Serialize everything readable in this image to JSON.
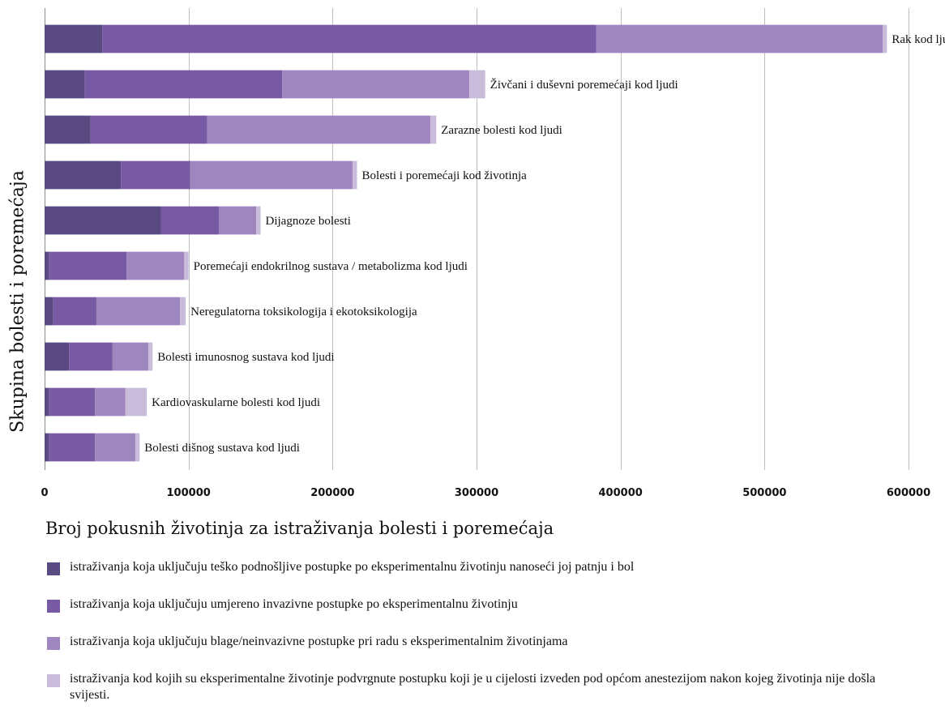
{
  "chart_data": {
    "type": "bar",
    "orientation": "horizontal",
    "stacked": true,
    "ylabel": "Skupina bolesti i poremećaja",
    "xlabel": "Broj pokusnih životinja za istraživanja bolesti i poremećaja",
    "xlim": [
      0,
      600000
    ],
    "xticks": [
      "0",
      "100000",
      "200000",
      "300000",
      "400000",
      "500000",
      "600000"
    ],
    "tick_values": [
      0,
      100000,
      200000,
      300000,
      400000,
      500000,
      600000
    ],
    "grid": "vertical",
    "legend_placement": "bottom",
    "categories": [
      "Rak kod ljudi",
      "Živčani i duševni poremećaji kod ljudi",
      "Zarazne bolesti kod ljudi",
      "Bolesti i poremećaji kod životinja",
      "Dijagnoze bolesti",
      "Poremećaji endokrilnog sustava / metabolizma kod ljudi",
      "Neregulatorna toksikologija i ekotoksikologija",
      "Bolesti imunosnog sustava kod ljudi",
      "Kardiovaskularne bolesti kod ljudi",
      "Bolesti dišnog sustava kod ljudi"
    ],
    "series": [
      {
        "name": "istraživanja koja uključuju teško podnošljive postupke po eksperimentalnu životinju  nanoseći joj patnju i bol",
        "color": "#5a4a82",
        "values": [
          40000,
          28000,
          32000,
          53000,
          81000,
          3000,
          6000,
          17000,
          3000,
          3000
        ]
      },
      {
        "name": "istraživanja koja uključuju umjereno invazivne postupke po eksperimentalnu životinju",
        "color": "#775aa3",
        "values": [
          343000,
          137000,
          81000,
          48000,
          40000,
          54000,
          30000,
          30000,
          32000,
          32000
        ]
      },
      {
        "name": "istraživanja koja uključuju  blage/neinvazivne postupke pri radu s eksperimentalnim životinjama",
        "color": "#9e87be",
        "values": [
          199000,
          130000,
          155000,
          113000,
          26000,
          40000,
          58000,
          25000,
          21000,
          28000
        ]
      },
      {
        "name": "istraživanja kod kojih su eksperimentalne  životinje podvrgnute postupku koji je u cijelosti izveden pod općom anestezijom nakon kojeg životinja nije došla svijesti.",
        "color": "#c8bcda",
        "values": [
          3000,
          11000,
          4000,
          3000,
          3000,
          3000,
          4000,
          3000,
          15000,
          3000
        ]
      }
    ]
  }
}
